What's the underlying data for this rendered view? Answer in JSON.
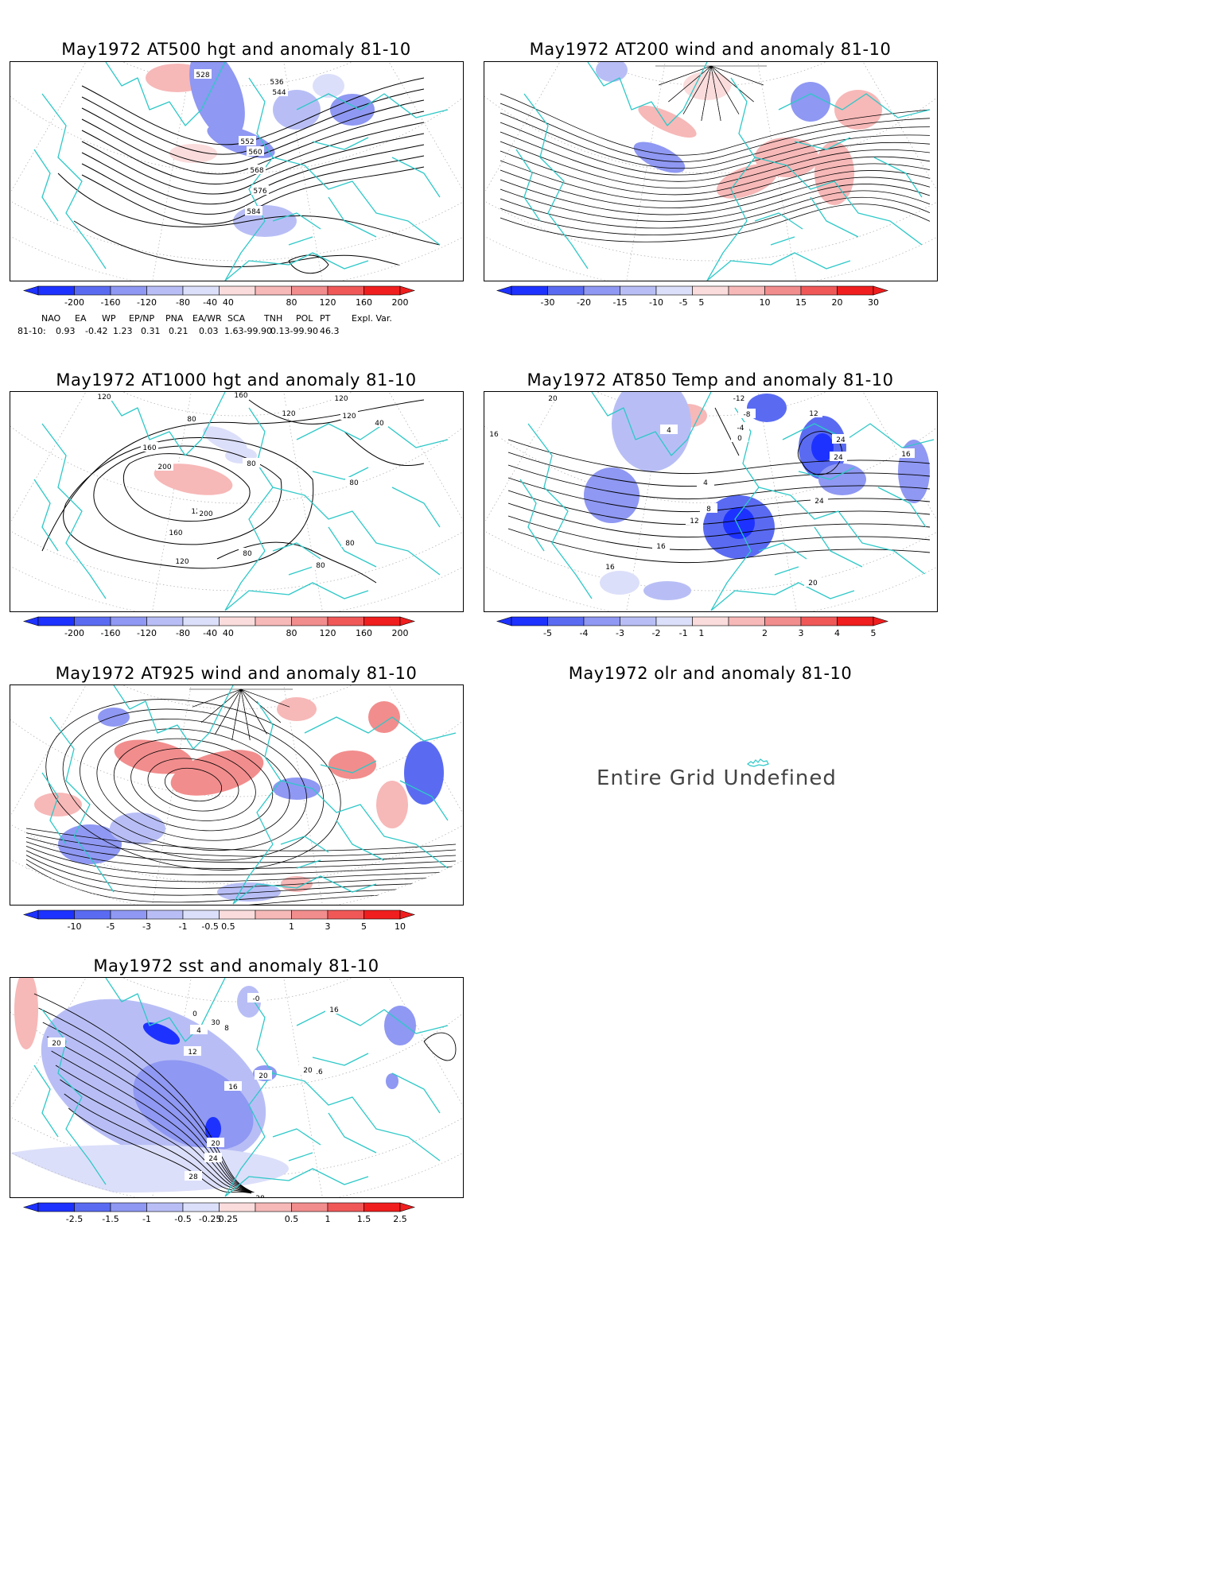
{
  "panels": {
    "p500": {
      "title": "May1972 AT500 hgt and anomaly 81-10",
      "contour_labels": [
        "528",
        "536",
        "544",
        "552",
        "560",
        "568",
        "576",
        "584"
      ],
      "colorbar": [
        "-200",
        "-160",
        "-120",
        "-80",
        "-40",
        "40",
        "80",
        "120",
        "160",
        "200"
      ]
    },
    "p200": {
      "title": "May1972 AT200 wind and anomaly 81-10",
      "colorbar": [
        "-30",
        "-20",
        "-15",
        "-10",
        "-5",
        "5",
        "10",
        "15",
        "20",
        "30"
      ]
    },
    "p1000": {
      "title": "May1972 AT1000 hgt and anomaly 81-10",
      "contour_labels": [
        "120",
        "160",
        "120",
        "120",
        "120",
        "40",
        "80",
        "160",
        "200",
        "120",
        "80",
        "80",
        "200",
        "160",
        "120",
        "80",
        "80",
        "80"
      ],
      "colorbar": [
        "-200",
        "-160",
        "-120",
        "-80",
        "-40",
        "40",
        "80",
        "120",
        "160",
        "200"
      ]
    },
    "p850": {
      "title": "May1972 AT850 Temp and anomaly 81-10",
      "contour_labels": [
        "20",
        "16",
        "-12",
        "-8",
        "-4",
        "0",
        "4",
        "12",
        "24",
        "24",
        "16",
        "24",
        "4",
        "8",
        "12",
        "16",
        "16",
        "20"
      ],
      "colorbar": [
        "-5",
        "-4",
        "-3",
        "-2",
        "-1",
        "1",
        "2",
        "3",
        "4",
        "5"
      ]
    },
    "p925": {
      "title": "May1972 AT925 wind and anomaly 81-10",
      "colorbar": [
        "-10",
        "-5",
        "-3",
        "-1",
        "-0.5",
        "0.5",
        "1",
        "3",
        "5",
        "10"
      ]
    },
    "polr": {
      "title": "May1972 olr and anomaly 81-10",
      "message": "Entire Grid Undefined"
    },
    "psst": {
      "title": "May1972 sst and anomaly 81-10",
      "contour_labels": [
        "0",
        "4",
        "8",
        "12",
        "16",
        "20",
        "24",
        "28",
        "28",
        "20",
        "16",
        "20",
        "-0",
        "30",
        "16",
        "20"
      ],
      "colorbar": [
        "-2.5",
        "-1.5",
        "-1",
        "-0.5",
        "-0.25",
        "0.25",
        "0.5",
        "1",
        "1.5",
        "2.5"
      ]
    }
  },
  "teleconnections": {
    "headers": [
      "NAO",
      "EA",
      "WP",
      "EP/NP",
      "PNA",
      "EA/WR",
      "SCA",
      "TNH",
      "POL",
      "PT",
      "Expl. Var."
    ],
    "row_label": "81-10:",
    "values": [
      "0.93",
      "-0.42",
      "1.23",
      "0.31",
      "0.21",
      "0.03",
      "1.63-99.90",
      "0.13-99.90",
      "46.3"
    ]
  },
  "colors": {
    "coast": "#2ec8c8",
    "contour": "#000000",
    "neg": [
      "#1e32ff",
      "#5a6bf2",
      "#8f98f2",
      "#b8bef5",
      "#dcdff9"
    ],
    "pos": [
      "#fbdcdc",
      "#f7b8b8",
      "#f28d8d",
      "#f05858",
      "#f01e1e"
    ]
  }
}
